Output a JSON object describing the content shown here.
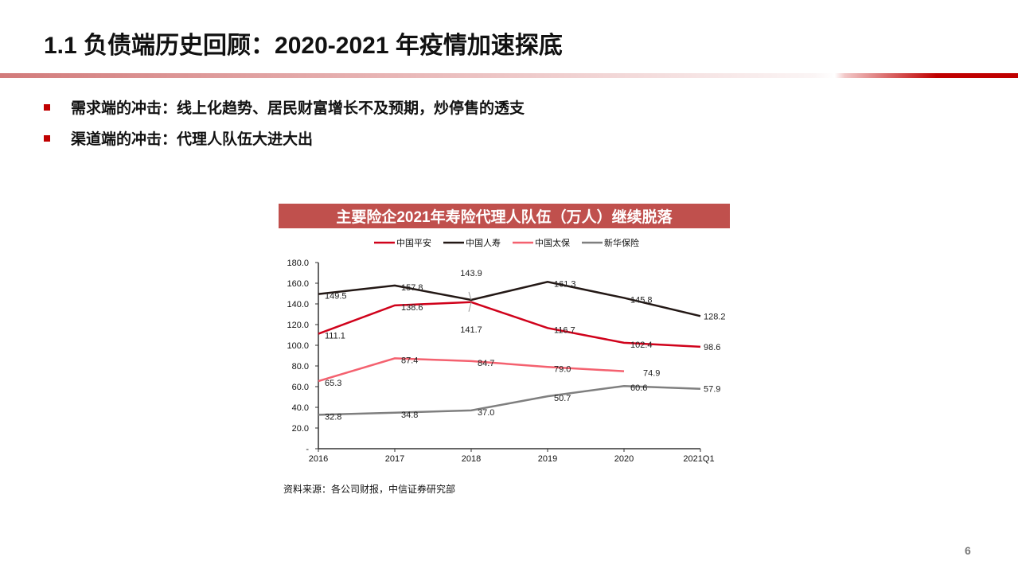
{
  "header": {
    "title": "1.1 负债端历史回顾：2020-2021 年疫情加速探底"
  },
  "bullets": [
    "需求端的冲击：线上化趋势、居民财富增长不及预期，炒停售的透支",
    "渠道端的冲击：代理人队伍大进大出"
  ],
  "source": "资料来源：各公司财报，中信证券研究部",
  "page_number": "6",
  "chart_data": {
    "type": "line",
    "title": "主要险企2021年寿险代理人队伍（万人）继续脱落",
    "categories": [
      "2016",
      "2017",
      "2018",
      "2019",
      "2020",
      "2021Q1"
    ],
    "ylim": [
      0,
      180
    ],
    "yticks": [
      "-",
      "20.0",
      "40.0",
      "60.0",
      "80.0",
      "100.0",
      "120.0",
      "140.0",
      "160.0",
      "180.0"
    ],
    "legend_position": "top",
    "series": [
      {
        "name": "中国平安",
        "color": "#d0021b",
        "values": [
          111.1,
          138.6,
          141.7,
          116.7,
          102.4,
          98.6
        ]
      },
      {
        "name": "中国人寿",
        "color": "#231815",
        "values": [
          149.5,
          157.8,
          143.9,
          161.3,
          145.8,
          128.2
        ]
      },
      {
        "name": "中国太保",
        "color": "#f4616f",
        "values": [
          65.3,
          87.4,
          84.7,
          79.0,
          74.9,
          null
        ]
      },
      {
        "name": "新华保险",
        "color": "#7f7f7f",
        "values": [
          32.8,
          34.8,
          37.0,
          50.7,
          60.6,
          57.9
        ]
      }
    ]
  }
}
